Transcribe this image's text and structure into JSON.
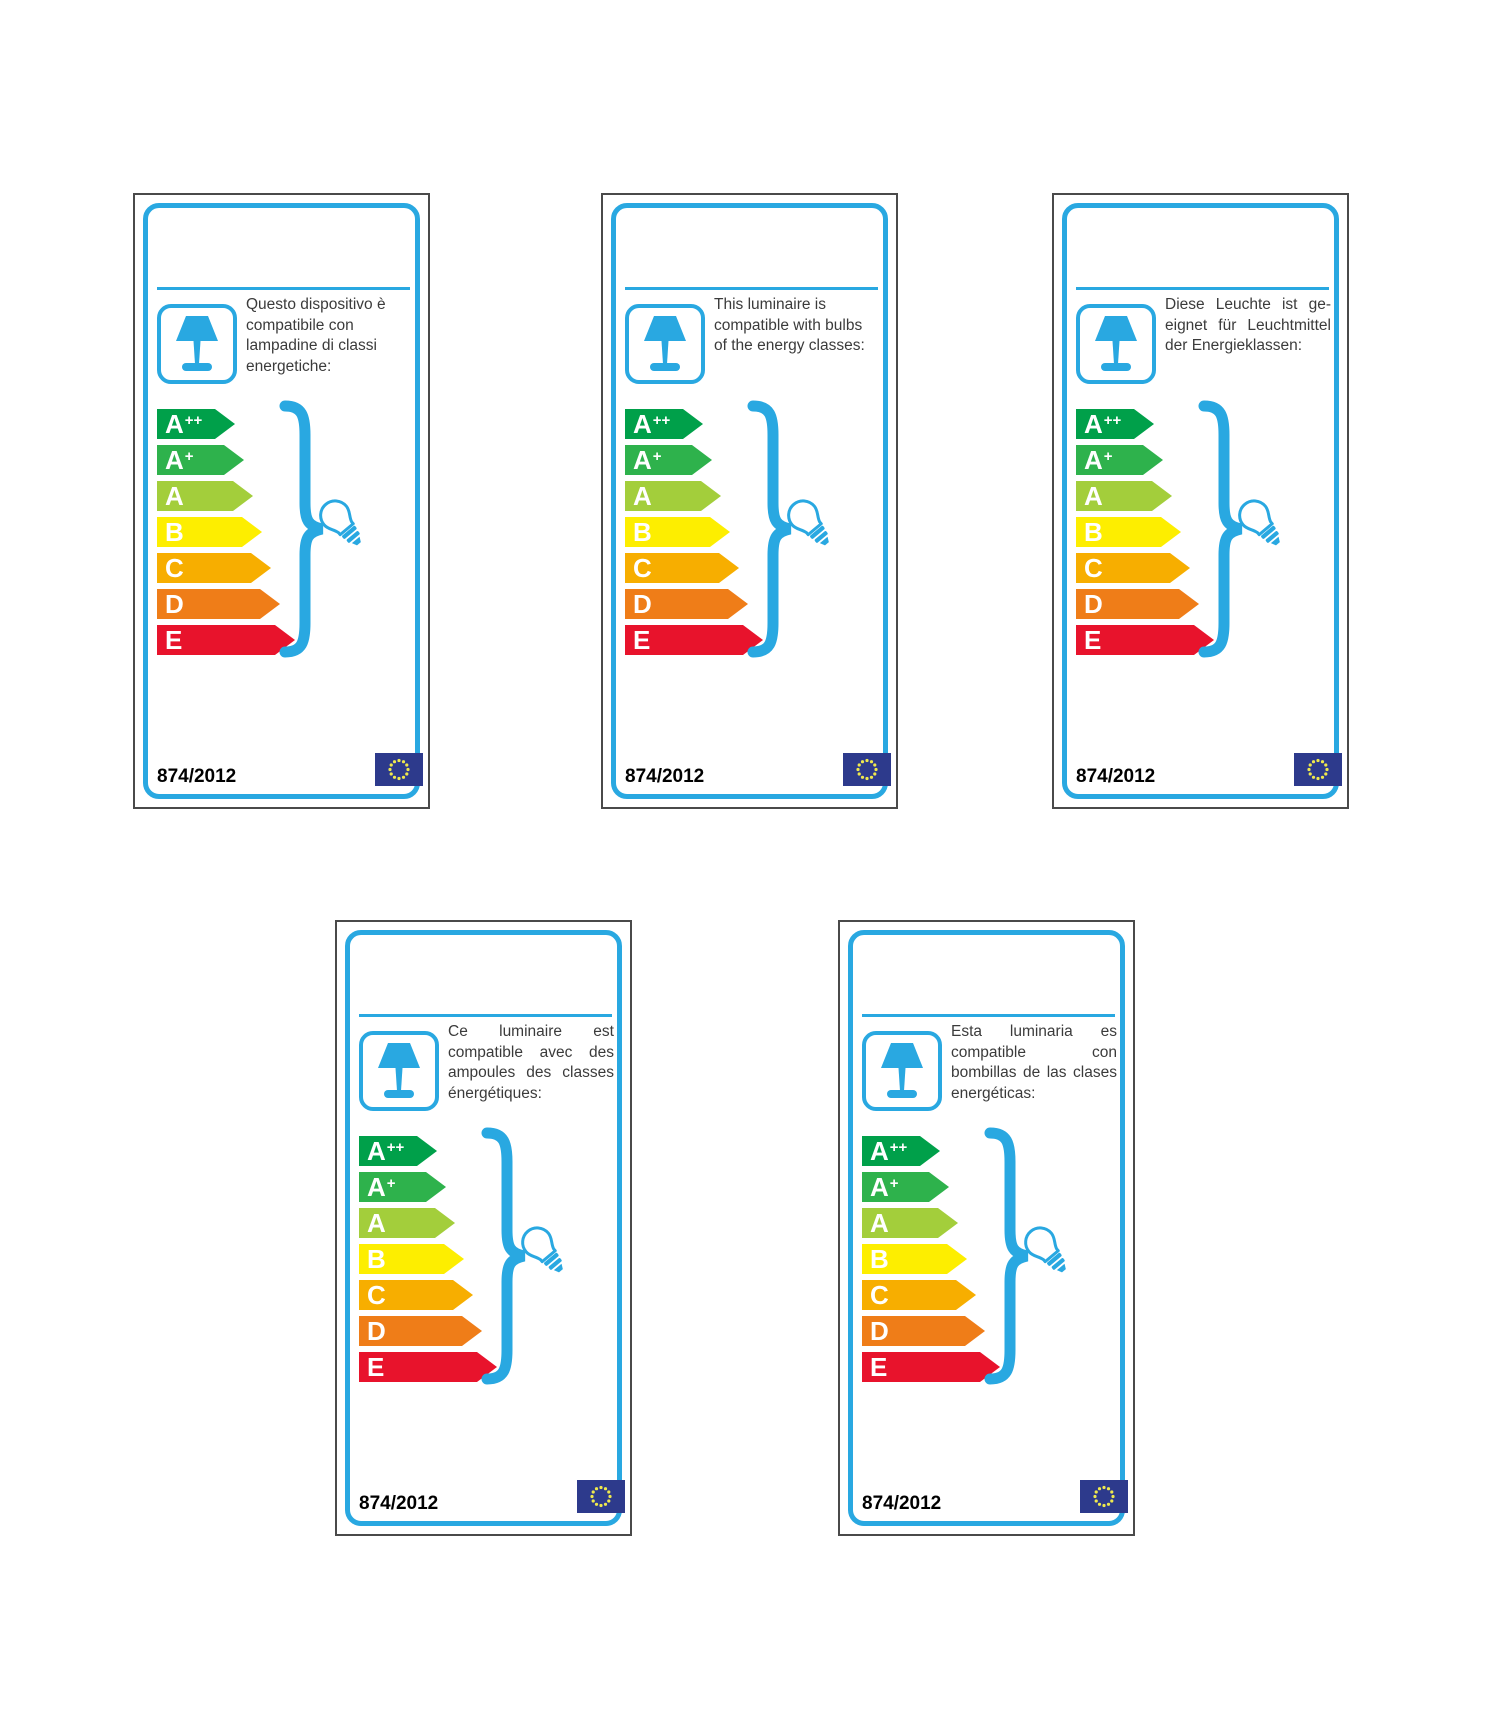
{
  "colors": {
    "accent_blue": "#29A8E1",
    "label_border": "#4A4A4A",
    "text": "#3B3B3B",
    "eu_flag_blue": "#2D3A8C",
    "eu_flag_stars": "#EFE94E"
  },
  "regulation_number": "874/2012",
  "energy_classes": [
    {
      "letter": "A",
      "sup": "++",
      "color": "#00A04A"
    },
    {
      "letter": "A",
      "sup": "+",
      "color": "#2EB24C"
    },
    {
      "letter": "A",
      "sup": "",
      "color": "#A3CE3B"
    },
    {
      "letter": "B",
      "sup": "",
      "color": "#FDEE00"
    },
    {
      "letter": "C",
      "sup": "",
      "color": "#F7AE00"
    },
    {
      "letter": "D",
      "sup": "",
      "color": "#EF7D18"
    },
    {
      "letter": "E",
      "sup": "",
      "color": "#E8132C"
    }
  ],
  "labels": [
    {
      "language": "italian",
      "text_lines": [
        "Questo dispositivo è",
        "compatibile con",
        "lampadine di classi",
        "energetiche:"
      ],
      "justify": false
    },
    {
      "language": "english",
      "text_lines": [
        "This luminaire is",
        "compatible with bulbs",
        "of the energy classes:"
      ],
      "justify": false
    },
    {
      "language": "german",
      "text_lines": [
        "Diese Leuchte ist ge-",
        "eignet für Leuchtmittel",
        "der Energieklassen:"
      ],
      "justify": true
    },
    {
      "language": "french",
      "text_lines": [
        "Ce luminaire est",
        "compatible avec des",
        "ampoules des classes",
        "énergétiques:"
      ],
      "justify": true
    },
    {
      "language": "spanish",
      "text_lines": [
        "Esta luminaria es",
        "compatible con",
        "bombillas de las clases",
        "energéticas:"
      ],
      "justify": true
    }
  ]
}
